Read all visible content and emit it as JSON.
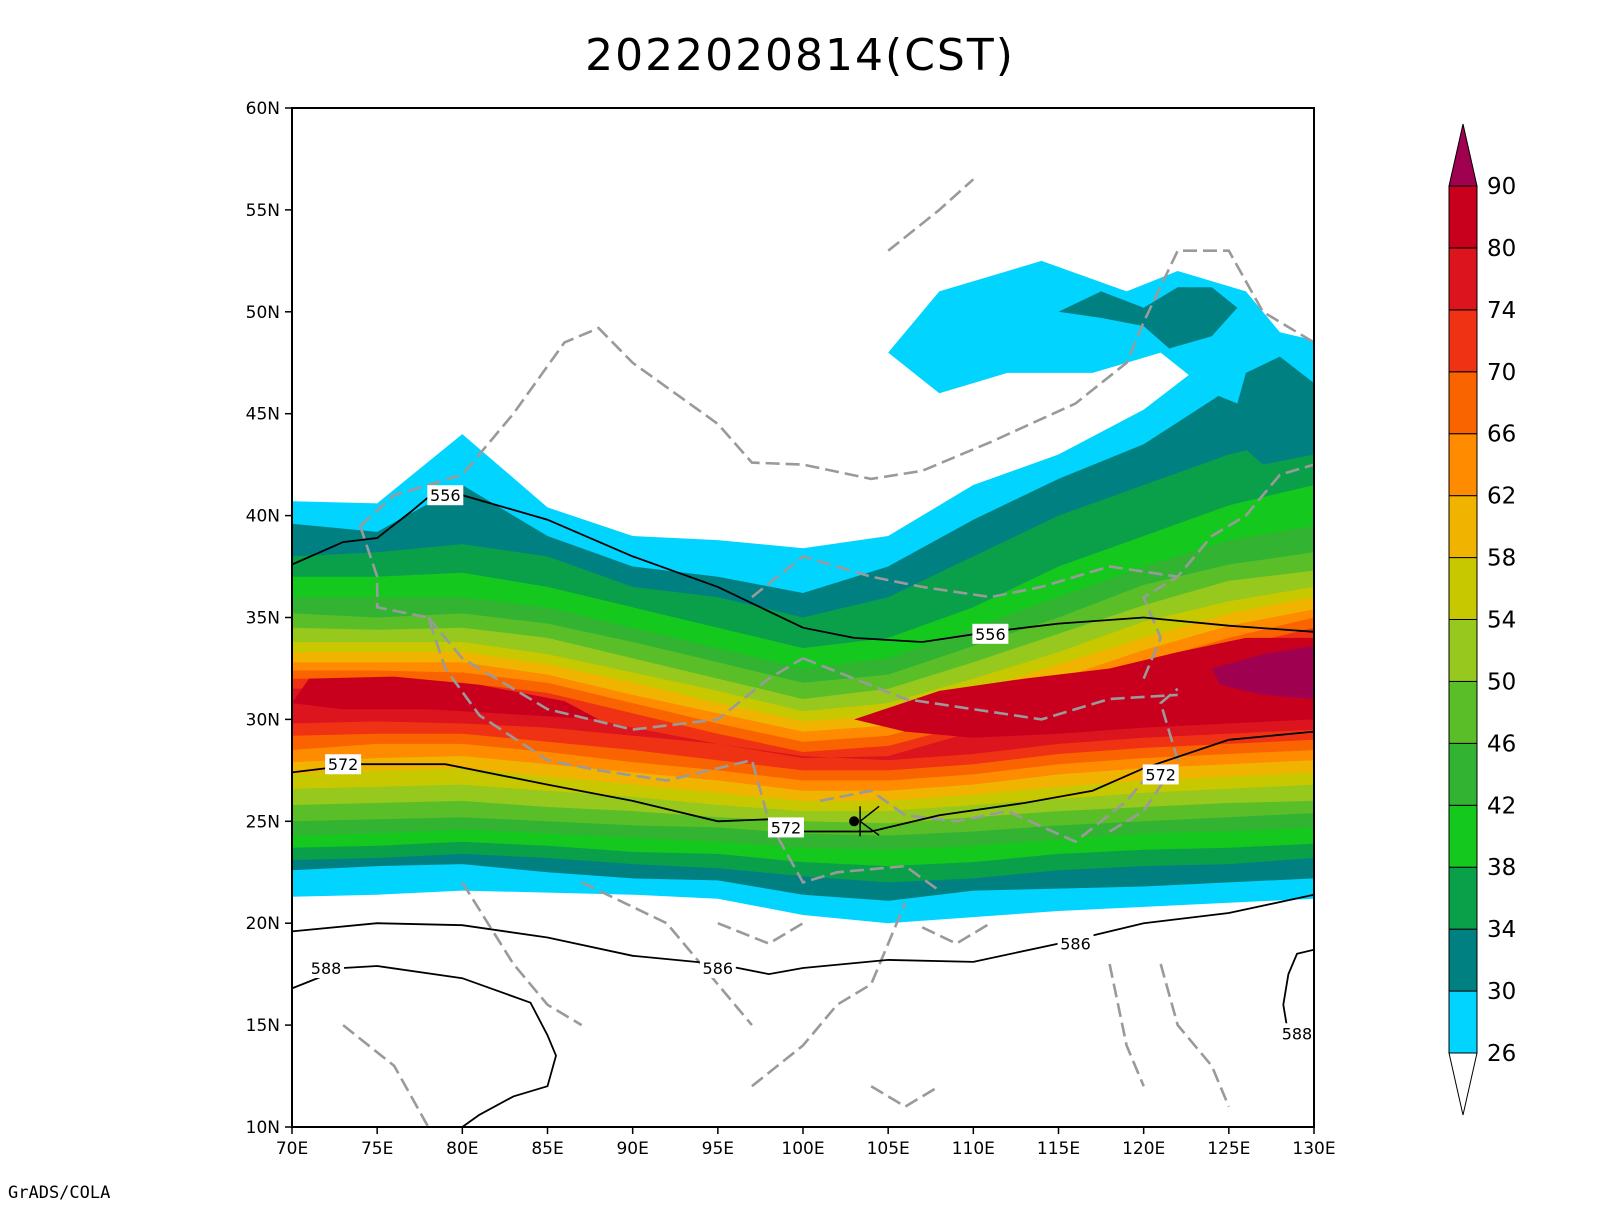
{
  "title": "2022020814(CST)",
  "credit": "GrADS/COLA",
  "map": {
    "lon_range": [
      70,
      130
    ],
    "lat_range": [
      10,
      60
    ],
    "x_ticks": [
      "70E",
      "75E",
      "80E",
      "85E",
      "90E",
      "95E",
      "100E",
      "105E",
      "110E",
      "115E",
      "120E",
      "125E",
      "130E"
    ],
    "y_ticks": [
      "10N",
      "15N",
      "20N",
      "25N",
      "30N",
      "35N",
      "40N",
      "45N",
      "50N",
      "55N",
      "60N"
    ]
  },
  "colorbar": {
    "labels": [
      "26",
      "30",
      "34",
      "38",
      "42",
      "46",
      "50",
      "54",
      "58",
      "62",
      "66",
      "70",
      "74",
      "80",
      "90"
    ],
    "colors": [
      "#00d4ff",
      "#008080",
      "#0aa04a",
      "#14c81e",
      "#32b432",
      "#5abe28",
      "#96c81e",
      "#c8c800",
      "#f0b400",
      "#ff8c00",
      "#fa6400",
      "#f03214",
      "#dc141e",
      "#c8001e",
      "#a00050"
    ],
    "under_color": "#ffffff",
    "over_color": "#a00050"
  },
  "contours": {
    "levels_labeled": [
      "556",
      "556",
      "572",
      "572",
      "572",
      "586",
      "586",
      "588",
      "588"
    ]
  },
  "chart_data": {
    "type": "heatmap",
    "title": "2022020814(CST)",
    "xlabel": "",
    "ylabel": "",
    "xlim": [
      70,
      130
    ],
    "ylim": [
      10,
      60
    ],
    "shading_levels": [
      26,
      30,
      34,
      38,
      42,
      46,
      50,
      54,
      58,
      62,
      66,
      70,
      74,
      80,
      90
    ],
    "max_core": {
      "lon": 128,
      "lat": 32,
      "value": 90
    },
    "contour_levels": [
      556,
      572,
      586,
      588
    ],
    "contour_lines": [
      {
        "level": 556,
        "points": [
          [
            70,
            37.6
          ],
          [
            73,
            38.7
          ],
          [
            75,
            38.9
          ],
          [
            77,
            40.2
          ],
          [
            78,
            40.9
          ],
          [
            80,
            41.0
          ],
          [
            85,
            39.8
          ],
          [
            90,
            38.0
          ],
          [
            95,
            36.5
          ],
          [
            100,
            34.5
          ],
          [
            103,
            34.0
          ],
          [
            107,
            33.8
          ],
          [
            111,
            34.3
          ],
          [
            115,
            34.7
          ],
          [
            120,
            35.0
          ],
          [
            125,
            34.6
          ],
          [
            130,
            34.3
          ]
        ]
      },
      {
        "level": 572,
        "points": [
          [
            70,
            27.4
          ],
          [
            74,
            27.8
          ],
          [
            79,
            27.8
          ],
          [
            85,
            26.8
          ],
          [
            90,
            26.0
          ],
          [
            95,
            25.0
          ],
          [
            98,
            25.1
          ],
          [
            100,
            24.5
          ],
          [
            104,
            24.5
          ],
          [
            108,
            25.3
          ],
          [
            113,
            25.9
          ],
          [
            117,
            26.5
          ],
          [
            120,
            27.6
          ],
          [
            125,
            29.0
          ],
          [
            130,
            29.4
          ]
        ]
      },
      {
        "level": 586,
        "points": [
          [
            70,
            19.6
          ],
          [
            75,
            20.0
          ],
          [
            80,
            19.9
          ],
          [
            85,
            19.3
          ],
          [
            90,
            18.4
          ],
          [
            95,
            18.0
          ],
          [
            98,
            17.5
          ],
          [
            100,
            17.8
          ],
          [
            105,
            18.2
          ],
          [
            110,
            18.1
          ],
          [
            115,
            19.0
          ],
          [
            120,
            20.0
          ],
          [
            125,
            20.5
          ],
          [
            130,
            21.4
          ]
        ]
      },
      {
        "level": 588,
        "points": [
          [
            70,
            16.8
          ],
          [
            73,
            17.8
          ],
          [
            75,
            17.9
          ],
          [
            80,
            17.3
          ],
          [
            84,
            16.1
          ],
          [
            85,
            14.5
          ],
          [
            85.5,
            13.5
          ],
          [
            85,
            12.0
          ],
          [
            83,
            11.5
          ],
          [
            81,
            10.6
          ],
          [
            80,
            10.0
          ]
        ]
      },
      {
        "level": 588,
        "points": [
          [
            130,
            18.7
          ],
          [
            129,
            18.5
          ],
          [
            128.5,
            17.5
          ],
          [
            128.2,
            16.0
          ],
          [
            128.5,
            14.5
          ]
        ]
      }
    ]
  }
}
